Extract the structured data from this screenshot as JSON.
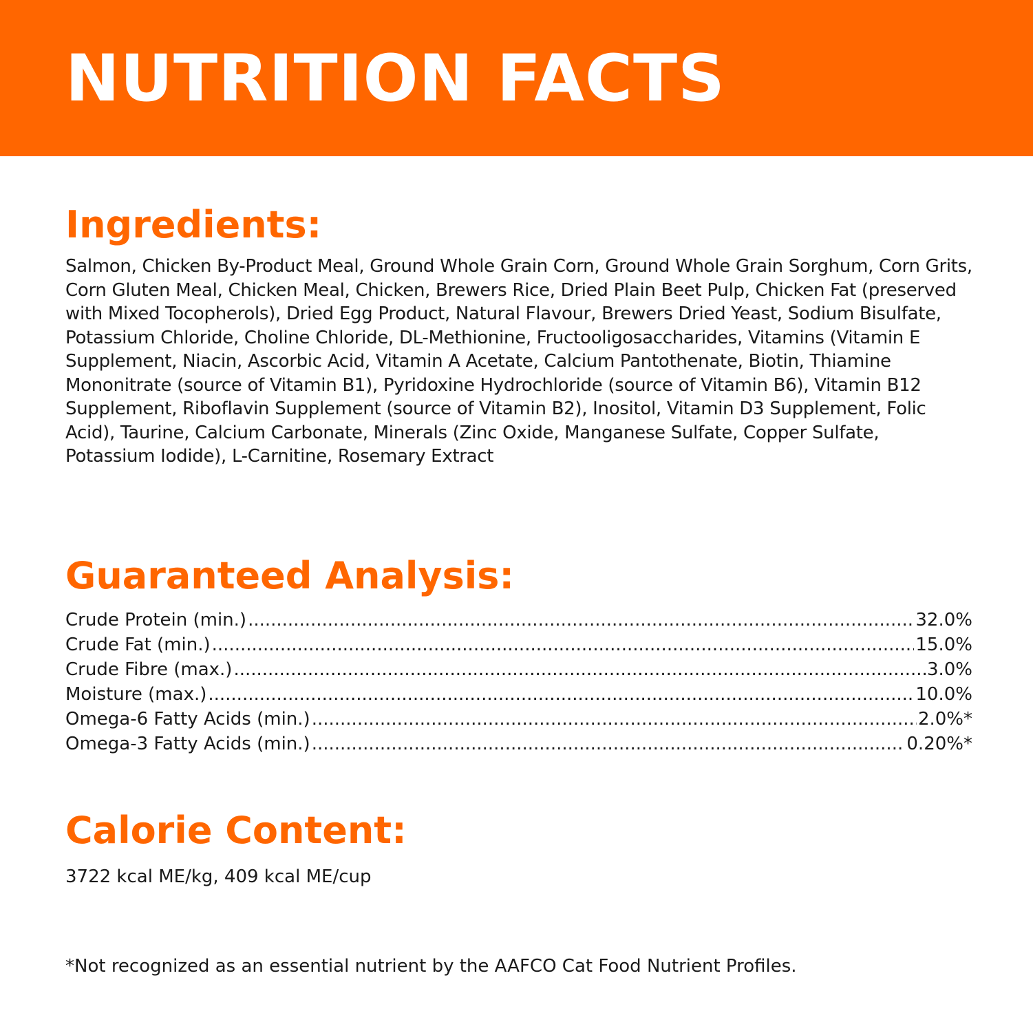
{
  "header": {
    "title": "NUTRITION FACTS",
    "background_color": "#ff6600"
  },
  "ingredients": {
    "heading": "Ingredients:",
    "text": "Salmon, Chicken By-Product Meal, Ground Whole Grain Corn, Ground Whole Grain Sorghum, Corn Grits, Corn Gluten Meal, Chicken Meal, Chicken, Brewers Rice, Dried Plain Beet Pulp, Chicken Fat (preserved with Mixed Tocopherols), Dried Egg Product, Natural Flavour, Brewers Dried Yeast, Sodium Bisulfate, Potassium Chloride, Choline Chloride, DL-Methionine, Fructooligosaccharides, Vitamins (Vitamin E Supplement, Niacin, Ascorbic Acid, Vitamin A Acetate, Calcium Pantothenate, Biotin, Thiamine Mononitrate (source of Vitamin B1), Pyridoxine Hydrochloride (source of Vitamin B6), Vitamin B12 Supplement, Riboflavin Supplement (source of Vitamin B2), Inositol, Vitamin D3 Supplement, Folic Acid), Taurine, Calcium Carbonate, Minerals (Zinc Oxide, Manganese Sulfate, Copper Sulfate, Potassium Iodide), L-Carnitine, Rosemary Extract"
  },
  "analysis": {
    "heading": "Guaranteed Analysis:",
    "rows": [
      {
        "label": "Crude Protein (min.)",
        "value": "32.0%"
      },
      {
        "label": "Crude Fat (min.)",
        "value": "15.0%"
      },
      {
        "label": "Crude Fibre (max.)",
        "value": "3.0%"
      },
      {
        "label": "Moisture (max.)",
        "value": "10.0%"
      },
      {
        "label": "Omega-6 Fatty Acids (min.)",
        "value": "2.0%*"
      },
      {
        "label": "Omega-3 Fatty Acids (min.)",
        "value": "0.20%*"
      }
    ]
  },
  "calorie": {
    "heading": "Calorie Content:",
    "text": "3722 kcal ME/kg, 409 kcal ME/cup"
  },
  "footnote": "*Not recognized as an essential nutrient by the AAFCO Cat Food Nutrient Profiles.",
  "colors": {
    "accent": "#ff6600",
    "text": "#1a1a1a"
  }
}
